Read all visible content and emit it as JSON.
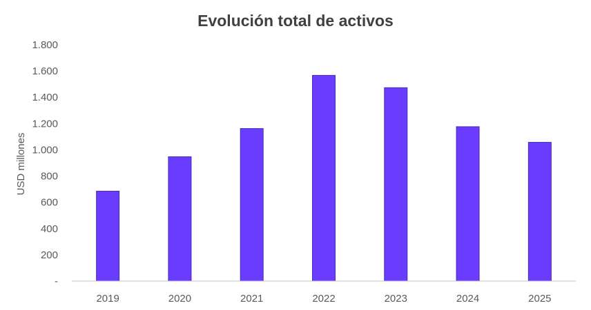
{
  "chart_data": {
    "type": "bar",
    "title": "Evolución total de activos",
    "xlabel": "",
    "ylabel": "USD millones",
    "categories": [
      "2019",
      "2020",
      "2021",
      "2022",
      "2023",
      "2024",
      "2025"
    ],
    "values": [
      685,
      947,
      1162,
      1567,
      1473,
      1176,
      1057
    ],
    "ylim": [
      0,
      1800
    ],
    "yticks": [
      0,
      200,
      400,
      600,
      800,
      1000,
      1200,
      1400,
      1600,
      1800
    ],
    "ytick_labels": [
      "-",
      "200",
      "400",
      "600",
      "800",
      "1.000",
      "1.200",
      "1.400",
      "1.600",
      "1.800"
    ],
    "grid": false,
    "legend": "none",
    "bar_color": "#6a3cff",
    "bar_edge_color": "#4a2bb8",
    "axis_color": "#bfbfbf"
  }
}
